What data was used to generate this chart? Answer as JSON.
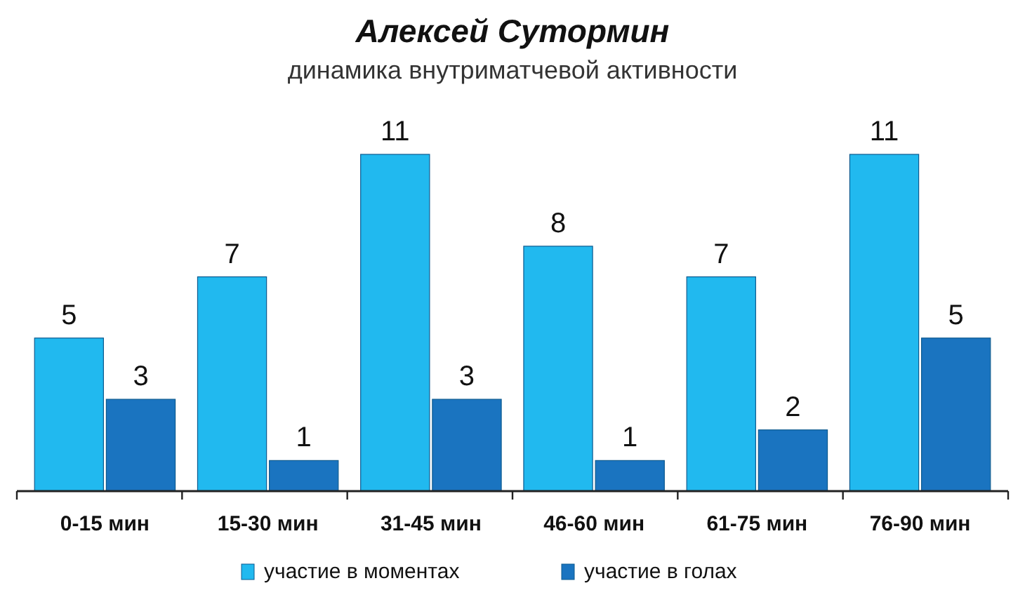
{
  "chart_data": {
    "type": "bar",
    "title": "Алексей Сутормин",
    "subtitle": "динамика внутриматчевой активности",
    "categories": [
      "0-15 мин",
      "15-30 мин",
      "31-45 мин",
      "46-60 мин",
      "61-75 мин",
      "76-90 мин"
    ],
    "series": [
      {
        "name": "участие в моментах",
        "color": "#21b9ef",
        "values": [
          5,
          7,
          11,
          8,
          7,
          11
        ]
      },
      {
        "name": "участие в голах",
        "color": "#1a74c0",
        "values": [
          3,
          1,
          3,
          1,
          2,
          5
        ]
      }
    ],
    "ylim": [
      0,
      11
    ],
    "data_labels": true,
    "legend": "bottom",
    "grid": false
  }
}
